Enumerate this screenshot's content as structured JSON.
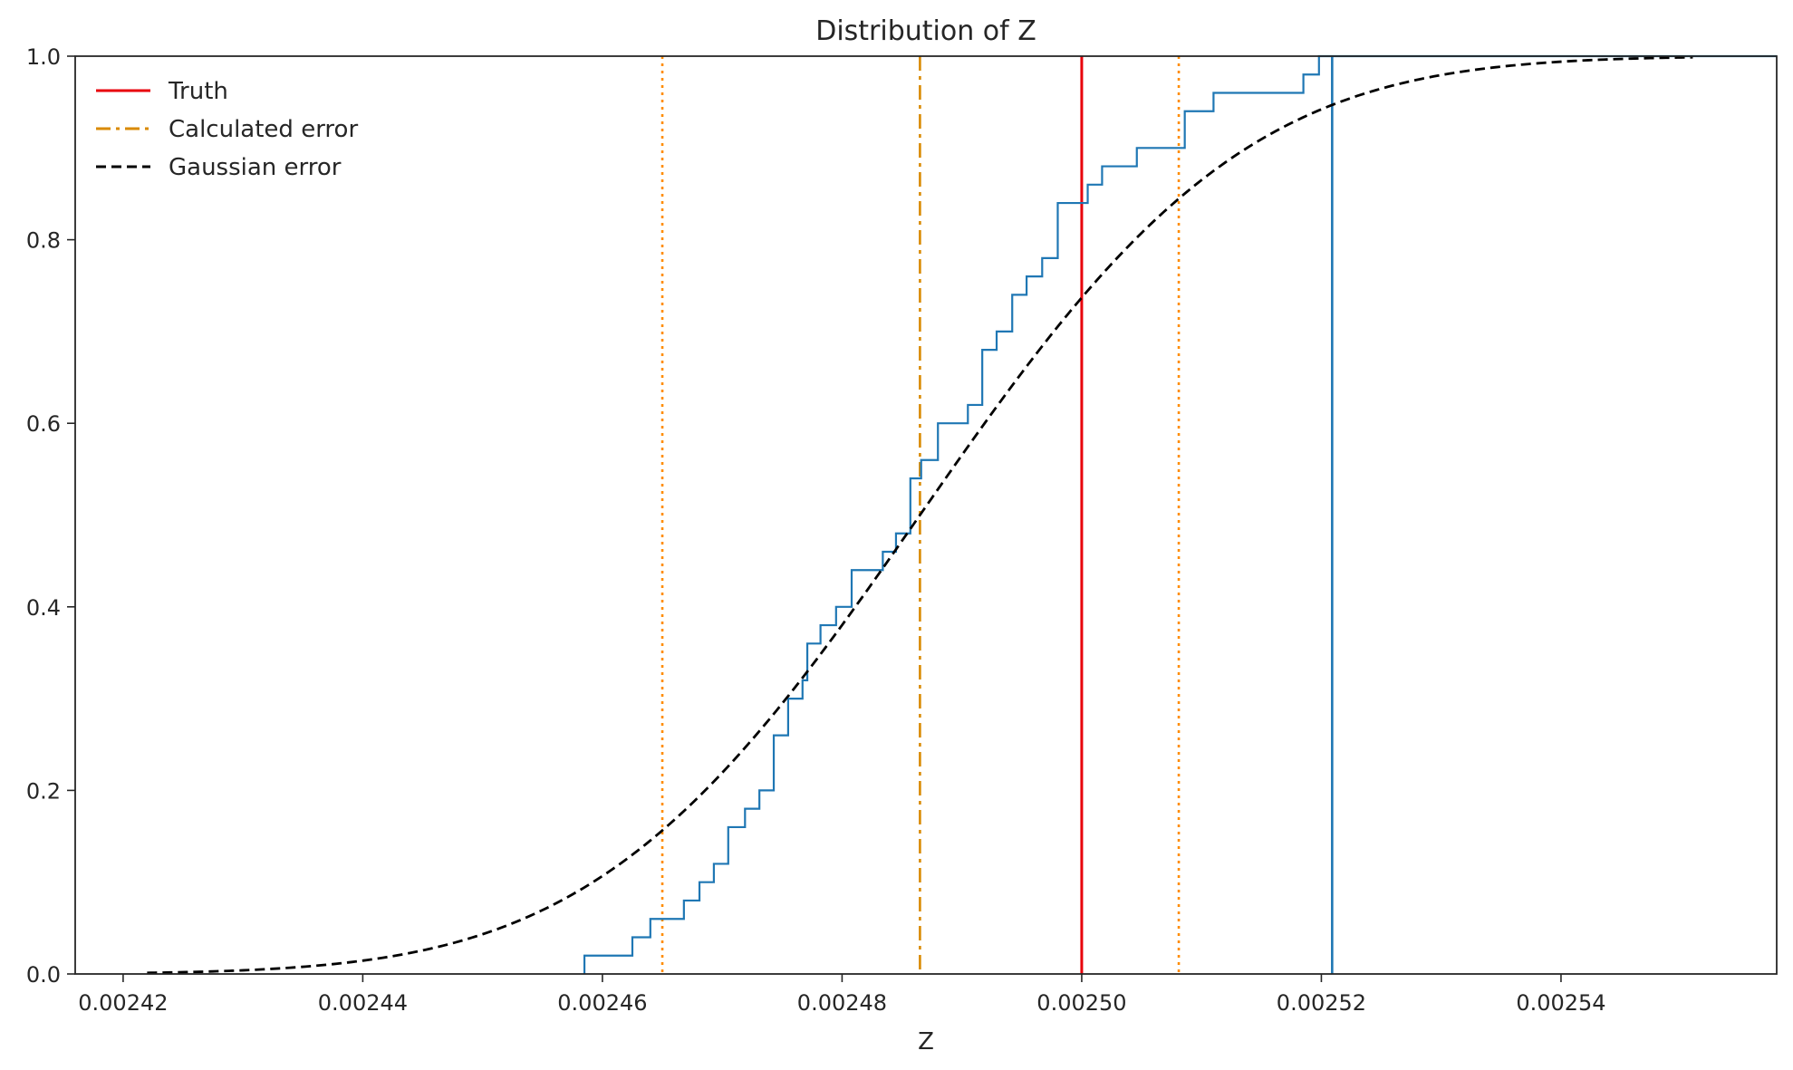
{
  "chart_data": {
    "type": "line",
    "title": "Distribution of Z",
    "xlabel": "Z",
    "ylabel": "",
    "xlim": [
      0.002416,
      0.002558
    ],
    "ylim": [
      0,
      1
    ],
    "x_ticks": [
      0.00242,
      0.00244,
      0.00246,
      0.00248,
      0.0025,
      0.00252,
      0.00254
    ],
    "x_tick_labels": [
      "0.00242",
      "0.00244",
      "0.00246",
      "0.00248",
      "0.00250",
      "0.00252",
      "0.00254"
    ],
    "y_ticks": [
      0.0,
      0.2,
      0.4,
      0.6,
      0.8,
      1.0
    ],
    "y_tick_labels": [
      "0.0",
      "0.2",
      "0.4",
      "0.6",
      "0.8",
      "1.0"
    ],
    "grid": false,
    "legend_position": "top-left",
    "legend": [
      {
        "label": "Truth",
        "color": "#e8000b",
        "style": "solid"
      },
      {
        "label": "Calculated error",
        "color": "#d98a00",
        "style": "dashdot"
      },
      {
        "label": "Gaussian error",
        "color": "#000000",
        "style": "dashed"
      }
    ],
    "vertical_lines": [
      {
        "x": 0.0025,
        "color": "#e8000b",
        "style": "solid",
        "legend": "Truth"
      },
      {
        "x": 0.0024865,
        "color": "#d98a00",
        "style": "dashdot",
        "legend": "Calculated error"
      },
      {
        "x": 0.002465,
        "color": "#ff8c00",
        "style": "dotted"
      },
      {
        "x": 0.0025081,
        "color": "#ff8c00",
        "style": "dotted"
      },
      {
        "x": 0.0025209,
        "color": "#1f77b4",
        "style": "solid"
      }
    ],
    "ecdf": {
      "color": "#1f77b4",
      "steps": [
        [
          0.0024585,
          0.02
        ],
        [
          0.0024625,
          0.04
        ],
        [
          0.002464,
          0.06
        ],
        [
          0.0024668,
          0.08
        ],
        [
          0.0024681,
          0.1
        ],
        [
          0.0024693,
          0.12
        ],
        [
          0.0024705,
          0.16
        ],
        [
          0.0024719,
          0.18
        ],
        [
          0.0024731,
          0.2
        ],
        [
          0.0024743,
          0.26
        ],
        [
          0.0024755,
          0.3
        ],
        [
          0.0024767,
          0.32
        ],
        [
          0.0024771,
          0.36
        ],
        [
          0.0024782,
          0.38
        ],
        [
          0.0024795,
          0.4
        ],
        [
          0.0024808,
          0.44
        ],
        [
          0.0024834,
          0.46
        ],
        [
          0.0024845,
          0.48
        ],
        [
          0.0024857,
          0.54
        ],
        [
          0.0024866,
          0.56
        ],
        [
          0.002488,
          0.6
        ],
        [
          0.0024905,
          0.62
        ],
        [
          0.0024917,
          0.68
        ],
        [
          0.0024929,
          0.7
        ],
        [
          0.0024942,
          0.74
        ],
        [
          0.0024954,
          0.76
        ],
        [
          0.0024967,
          0.78
        ],
        [
          0.002498,
          0.84
        ],
        [
          0.0025005,
          0.86
        ],
        [
          0.0025017,
          0.88
        ],
        [
          0.0025046,
          0.9
        ],
        [
          0.0025086,
          0.94
        ],
        [
          0.002511,
          0.96
        ],
        [
          0.0025185,
          0.98
        ],
        [
          0.0025198,
          1.0
        ]
      ]
    },
    "gaussian_cdf": {
      "color": "#000000",
      "style": "dashed",
      "mean": 0.0024865,
      "sigma": 2.13e-05,
      "x_range": [
        0.002422,
        0.002551
      ]
    }
  }
}
